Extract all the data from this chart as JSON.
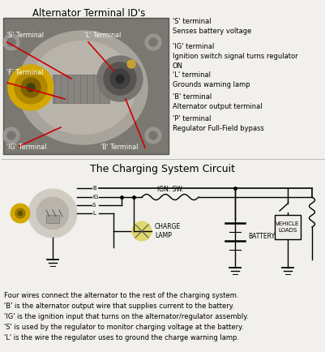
{
  "title_top": "Alternator Terminal ID's",
  "title_circuit": "The Charging System Circuit",
  "bg_color": "#f2f0ec",
  "terminal_descriptions": [
    "'S' terminal\nSenses battery voltage",
    "'IG' terminal\nIgnition switch signal turns regulator\nON",
    "'L' terminal\nGrounds warning lamp",
    "'B' terminal\nAlternator output terminal",
    "'P' terminal\nRegulator Full-Field bypass"
  ],
  "footer_lines": [
    "Four wires connect the alternator to the rest of the charging system.",
    "'B' is the alternator output wire that supplies current to the battery.",
    "'IG' is the ignition input that turns on the alternator/regulator assembly.",
    "'S' is used by the regulator to monitor charging voltage at the battery.",
    "'L' is the wire the regulator uses to ground the charge warning lamp."
  ],
  "text_color": "#000000",
  "line_color": "#000000",
  "photo_border": "#555555",
  "photo_bg": "#7a7870",
  "alt_body": "#b8b4ac",
  "alt_dark": "#908c84",
  "alt_mid": "#a0a09a",
  "pulley_outer": "#d4a800",
  "pulley_mid": "#b08800",
  "pulley_inner": "#806000",
  "red_line": "#cc0000",
  "lamp_color": "#e0d870",
  "circuit_bg": "#ffffff",
  "circuit_alt_body": "#c8c4bc",
  "circuit_pulley": "#d4a800",
  "title_fontsize": 8.5,
  "desc_fontsize": 6.0,
  "footer_fontsize": 6.0,
  "circuit_fontsize": 5.5
}
